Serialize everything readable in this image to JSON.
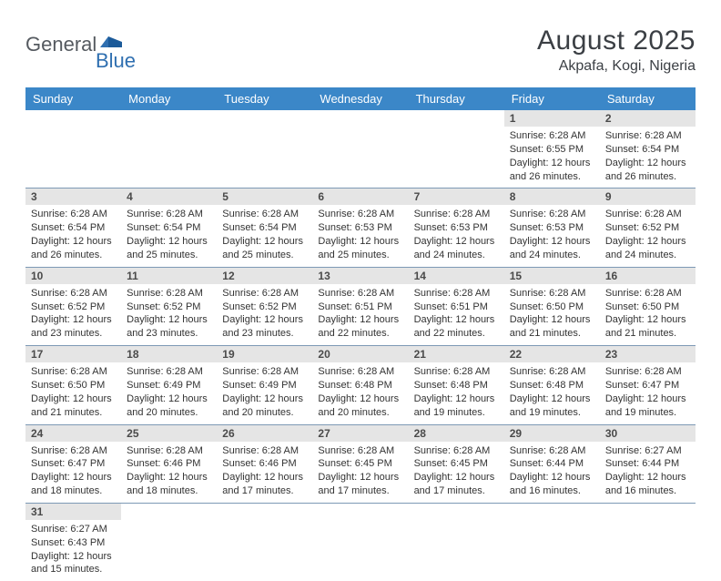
{
  "brand": {
    "part1": "General",
    "part2": "Blue"
  },
  "header": {
    "month_title": "August 2025",
    "location": "Akpafa, Kogi, Nigeria"
  },
  "colors": {
    "header_bg": "#3b87c8",
    "header_text": "#ffffff",
    "daynum_bg": "#e5e5e5",
    "rule": "#7d99b5",
    "brand_gray": "#555a60",
    "brand_blue": "#2f6fb0"
  },
  "weekdays": [
    "Sunday",
    "Monday",
    "Tuesday",
    "Wednesday",
    "Thursday",
    "Friday",
    "Saturday"
  ],
  "weeks": [
    [
      null,
      null,
      null,
      null,
      null,
      {
        "n": "1",
        "sr": "6:28 AM",
        "ss": "6:55 PM",
        "dl": "12 hours and 26 minutes."
      },
      {
        "n": "2",
        "sr": "6:28 AM",
        "ss": "6:54 PM",
        "dl": "12 hours and 26 minutes."
      }
    ],
    [
      {
        "n": "3",
        "sr": "6:28 AM",
        "ss": "6:54 PM",
        "dl": "12 hours and 26 minutes."
      },
      {
        "n": "4",
        "sr": "6:28 AM",
        "ss": "6:54 PM",
        "dl": "12 hours and 25 minutes."
      },
      {
        "n": "5",
        "sr": "6:28 AM",
        "ss": "6:54 PM",
        "dl": "12 hours and 25 minutes."
      },
      {
        "n": "6",
        "sr": "6:28 AM",
        "ss": "6:53 PM",
        "dl": "12 hours and 25 minutes."
      },
      {
        "n": "7",
        "sr": "6:28 AM",
        "ss": "6:53 PM",
        "dl": "12 hours and 24 minutes."
      },
      {
        "n": "8",
        "sr": "6:28 AM",
        "ss": "6:53 PM",
        "dl": "12 hours and 24 minutes."
      },
      {
        "n": "9",
        "sr": "6:28 AM",
        "ss": "6:52 PM",
        "dl": "12 hours and 24 minutes."
      }
    ],
    [
      {
        "n": "10",
        "sr": "6:28 AM",
        "ss": "6:52 PM",
        "dl": "12 hours and 23 minutes."
      },
      {
        "n": "11",
        "sr": "6:28 AM",
        "ss": "6:52 PM",
        "dl": "12 hours and 23 minutes."
      },
      {
        "n": "12",
        "sr": "6:28 AM",
        "ss": "6:52 PM",
        "dl": "12 hours and 23 minutes."
      },
      {
        "n": "13",
        "sr": "6:28 AM",
        "ss": "6:51 PM",
        "dl": "12 hours and 22 minutes."
      },
      {
        "n": "14",
        "sr": "6:28 AM",
        "ss": "6:51 PM",
        "dl": "12 hours and 22 minutes."
      },
      {
        "n": "15",
        "sr": "6:28 AM",
        "ss": "6:50 PM",
        "dl": "12 hours and 21 minutes."
      },
      {
        "n": "16",
        "sr": "6:28 AM",
        "ss": "6:50 PM",
        "dl": "12 hours and 21 minutes."
      }
    ],
    [
      {
        "n": "17",
        "sr": "6:28 AM",
        "ss": "6:50 PM",
        "dl": "12 hours and 21 minutes."
      },
      {
        "n": "18",
        "sr": "6:28 AM",
        "ss": "6:49 PM",
        "dl": "12 hours and 20 minutes."
      },
      {
        "n": "19",
        "sr": "6:28 AM",
        "ss": "6:49 PM",
        "dl": "12 hours and 20 minutes."
      },
      {
        "n": "20",
        "sr": "6:28 AM",
        "ss": "6:48 PM",
        "dl": "12 hours and 20 minutes."
      },
      {
        "n": "21",
        "sr": "6:28 AM",
        "ss": "6:48 PM",
        "dl": "12 hours and 19 minutes."
      },
      {
        "n": "22",
        "sr": "6:28 AM",
        "ss": "6:48 PM",
        "dl": "12 hours and 19 minutes."
      },
      {
        "n": "23",
        "sr": "6:28 AM",
        "ss": "6:47 PM",
        "dl": "12 hours and 19 minutes."
      }
    ],
    [
      {
        "n": "24",
        "sr": "6:28 AM",
        "ss": "6:47 PM",
        "dl": "12 hours and 18 minutes."
      },
      {
        "n": "25",
        "sr": "6:28 AM",
        "ss": "6:46 PM",
        "dl": "12 hours and 18 minutes."
      },
      {
        "n": "26",
        "sr": "6:28 AM",
        "ss": "6:46 PM",
        "dl": "12 hours and 17 minutes."
      },
      {
        "n": "27",
        "sr": "6:28 AM",
        "ss": "6:45 PM",
        "dl": "12 hours and 17 minutes."
      },
      {
        "n": "28",
        "sr": "6:28 AM",
        "ss": "6:45 PM",
        "dl": "12 hours and 17 minutes."
      },
      {
        "n": "29",
        "sr": "6:28 AM",
        "ss": "6:44 PM",
        "dl": "12 hours and 16 minutes."
      },
      {
        "n": "30",
        "sr": "6:27 AM",
        "ss": "6:44 PM",
        "dl": "12 hours and 16 minutes."
      }
    ],
    [
      {
        "n": "31",
        "sr": "6:27 AM",
        "ss": "6:43 PM",
        "dl": "12 hours and 15 minutes."
      },
      null,
      null,
      null,
      null,
      null,
      null
    ]
  ],
  "labels": {
    "sunrise": "Sunrise:",
    "sunset": "Sunset:",
    "daylight": "Daylight:"
  }
}
